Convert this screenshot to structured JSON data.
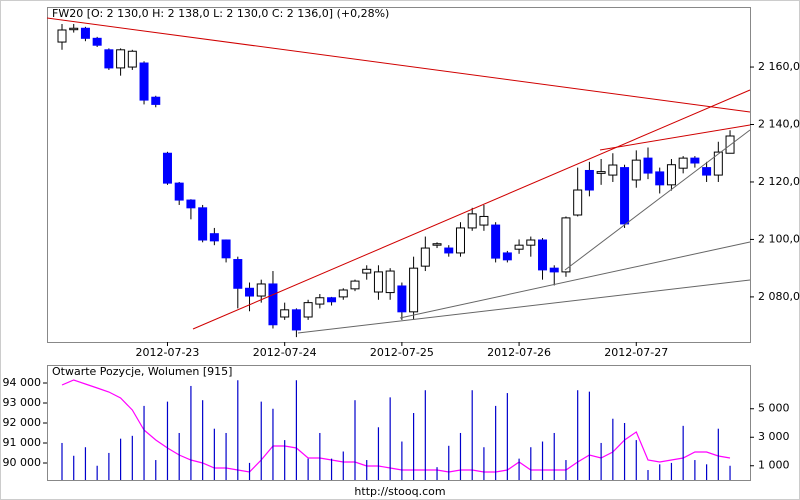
{
  "chart_data": [
    {
      "type": "candlestick",
      "title": "FW20 [O: 2 130,0  H: 2 138,0  L: 2 130,0  C: 2 136,0] (+0,28%)",
      "categories": [
        null,
        null,
        null,
        null,
        null,
        null,
        null,
        null,
        null,
        "2012-07-23",
        null,
        null,
        null,
        null,
        null,
        null,
        null,
        null,
        null,
        "2012-07-24",
        null,
        null,
        null,
        null,
        null,
        null,
        null,
        null,
        null,
        "2012-07-25",
        null,
        null,
        null,
        null,
        null,
        null,
        null,
        null,
        null,
        "2012-07-26",
        null,
        null,
        null,
        null,
        null,
        null,
        null,
        null,
        null,
        "2012-07-27",
        null,
        null,
        null,
        null,
        null,
        null,
        null,
        null
      ],
      "open": [
        2168.7,
        2173,
        2173.5,
        2170,
        2166,
        2159.7,
        2160,
        2161.4,
        2149.5,
        2130,
        2119.6,
        2113.7,
        2111,
        2102,
        2099.8,
        2093,
        2083,
        2080.3,
        2084.5,
        2073,
        2075.5,
        2073,
        2077.5,
        2079.7,
        2080,
        2082.8,
        2088.3,
        2081.7,
        2081.5,
        2083.8,
        2074.8,
        2090.7,
        2098,
        2097,
        2095.3,
        2104,
        2105,
        2105,
        2095.3,
        2096.6,
        2098,
        2099.8,
        2090,
        2088.7,
        2108.5,
        2124,
        2123,
        2122.4,
        2125,
        2120.7,
        2128.3,
        2123.5,
        2119,
        2124.8,
        2128.3,
        2125,
        2122.4,
        2130
      ],
      "high": [
        2175,
        2175,
        2174,
        2170.5,
        2166.5,
        2166.5,
        2166,
        2162,
        2150,
        2130.5,
        2120,
        2114,
        2112,
        2104,
        2100,
        2094,
        2085,
        2086,
        2089,
        2078,
        2076,
        2079,
        2081,
        2080,
        2083,
        2086,
        2091,
        2091,
        2090,
        2085,
        2094,
        2101,
        2099,
        2098,
        2106,
        2111,
        2112,
        2106,
        2096,
        2100,
        2101,
        2100.5,
        2091,
        2108,
        2125,
        2127,
        2128,
        2130,
        2126,
        2131,
        2132,
        2125,
        2128,
        2129,
        2129,
        2127,
        2134,
        2138
      ],
      "low": [
        2166,
        2172,
        2169,
        2167,
        2159,
        2157,
        2159,
        2147,
        2146,
        2119,
        2112,
        2107,
        2099,
        2098,
        2092,
        2076,
        2075,
        2078,
        2069,
        2072,
        2066,
        2072,
        2076,
        2077,
        2079,
        2082,
        2086,
        2079,
        2079,
        2072,
        2072,
        2089,
        2097,
        2094,
        2094,
        2103,
        2103,
        2092,
        2092,
        2095,
        2094,
        2086,
        2084,
        2087,
        2108,
        2115,
        2119,
        2120,
        2104,
        2118,
        2121,
        2116,
        2117,
        2123,
        2125,
        2120,
        2120,
        2130
      ],
      "close": [
        2172.9,
        2173.5,
        2170,
        2167.6,
        2159.7,
        2166,
        2165.5,
        2148.5,
        2147,
        2119.6,
        2113.7,
        2111,
        2099.8,
        2099.5,
        2093.6,
        2083,
        2080.3,
        2084.5,
        2070.3,
        2075.5,
        2068.5,
        2078,
        2079.7,
        2078.3,
        2082.4,
        2085.5,
        2089.6,
        2088.7,
        2089,
        2074.8,
        2090,
        2097,
        2098.5,
        2095.3,
        2104,
        2108.9,
        2108,
        2093.5,
        2092.9,
        2098,
        2099.8,
        2089.4,
        2088.7,
        2107.5,
        2117.2,
        2117.2,
        2123.6,
        2125.9,
        2105.4,
        2127.6,
        2123.1,
        2119,
        2126,
        2128.3,
        2126.6,
        2122.4,
        2130.4,
        2136
      ],
      "up_color": "#ffffff",
      "down_color": "#0000ff",
      "ylim": [
        2064.3,
        2180.9
      ],
      "yticks": [
        {
          "value": 2080,
          "label": "2 080,0"
        },
        {
          "value": 2100,
          "label": "2 100,0"
        },
        {
          "value": 2120,
          "label": "2 120,0"
        },
        {
          "value": 2140,
          "label": "2 140,0"
        },
        {
          "value": 2160,
          "label": "2 160,0"
        }
      ]
    },
    {
      "type": "volume_oi",
      "title": "Otwarte Pozycje, Wolumen [915]",
      "series": [
        {
          "type": "line",
          "color": "#ff00ff",
          "axis": "y",
          "values": [
            93900,
            94150,
            93950,
            93750,
            93550,
            93250,
            92650,
            91650,
            91150,
            90750,
            90400,
            90150,
            90000,
            89750,
            89750,
            89650,
            89550,
            90150,
            90850,
            90850,
            90750,
            90250,
            90250,
            90150,
            90050,
            90050,
            89850,
            89850,
            89750,
            89650,
            89650,
            89650,
            89650,
            89550,
            89650,
            89650,
            89550,
            89550,
            89650,
            90050,
            89650,
            89650,
            89650,
            89650,
            90050,
            90400,
            90250,
            90550,
            91150,
            91550,
            90150,
            90050,
            90150,
            90250,
            90550,
            90550,
            90350,
            90250
          ]
        },
        {
          "type": "bar",
          "color": "#0000cc",
          "axis": "y2",
          "values": [
            2600,
            1700,
            2300,
            1000,
            1900,
            2900,
            3100,
            5200,
            1400,
            5500,
            3300,
            6600,
            5600,
            3600,
            3300,
            7000,
            1200,
            5500,
            5000,
            2800,
            7000,
            1500,
            3300,
            1500,
            2000,
            5600,
            1400,
            3700,
            5800,
            2700,
            4700,
            6300,
            900,
            2400,
            3300,
            6300,
            2300,
            5200,
            6100,
            1500,
            2300,
            2700,
            3300,
            1400,
            6300,
            6200,
            2600,
            4300,
            4000,
            2800,
            700,
            1100,
            1200,
            3800,
            1400,
            1100,
            3600,
            1000
          ]
        }
      ],
      "ylim": [
        89150,
        94900
      ],
      "yticks": [
        {
          "value": 90000,
          "label": "90 000"
        },
        {
          "value": 91000,
          "label": "91 000"
        },
        {
          "value": 92000,
          "label": "92 000"
        },
        {
          "value": 93000,
          "label": "93 000"
        },
        {
          "value": 94000,
          "label": "94 000"
        }
      ],
      "y2lim": [
        0,
        8070
      ],
      "y2ticks": [
        {
          "value": 1000,
          "label": "1 000"
        },
        {
          "value": 3000,
          "label": "3 000"
        },
        {
          "value": 5000,
          "label": "5 000"
        }
      ]
    }
  ],
  "footer": "http://stooq.com"
}
